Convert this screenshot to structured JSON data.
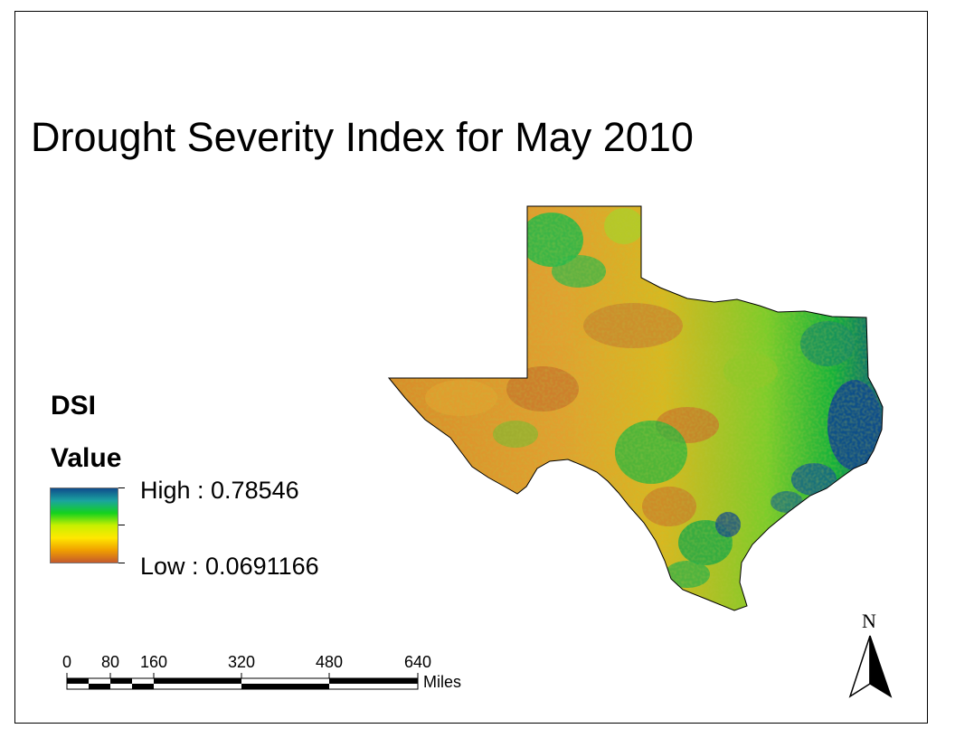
{
  "map": {
    "title": "Drought Severity Index for May 2010",
    "region": "Texas",
    "colors": {
      "low": "#c7642c",
      "low_mid": "#ffe400",
      "mid": "#17c22b",
      "high": "#0f4c8c"
    }
  },
  "legend": {
    "heading": "DSI",
    "subheading": "Value",
    "high_label": "High : 0.78546",
    "low_label": "Low : 0.0691166",
    "gradient": [
      "#0f4c8c",
      "#1aa4a0",
      "#14d21e",
      "#c8f000",
      "#ffe800",
      "#f0a000",
      "#c55a2c"
    ]
  },
  "scalebar": {
    "labels": [
      "0",
      "80",
      "160",
      "320",
      "480",
      "640"
    ],
    "unit": "Miles"
  },
  "north_arrow": {
    "letter": "N",
    "icon": "north-arrow-icon"
  }
}
